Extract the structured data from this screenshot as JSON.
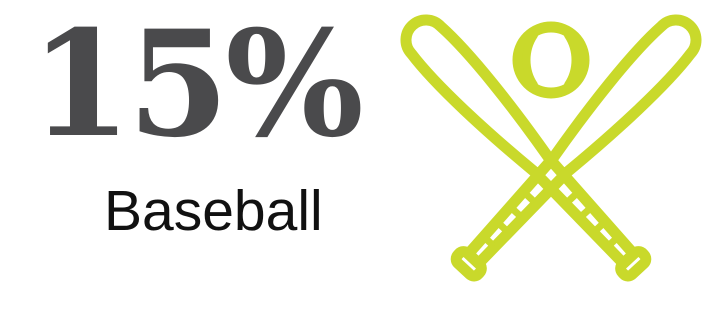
{
  "stat": {
    "value": "15%",
    "label": "Baseball"
  },
  "icon": {
    "name": "baseball-bats-and-ball-icon"
  },
  "colors": {
    "stat_text": "#4a4a4c",
    "icon": "#c9d92b",
    "background": "#ffffff"
  }
}
